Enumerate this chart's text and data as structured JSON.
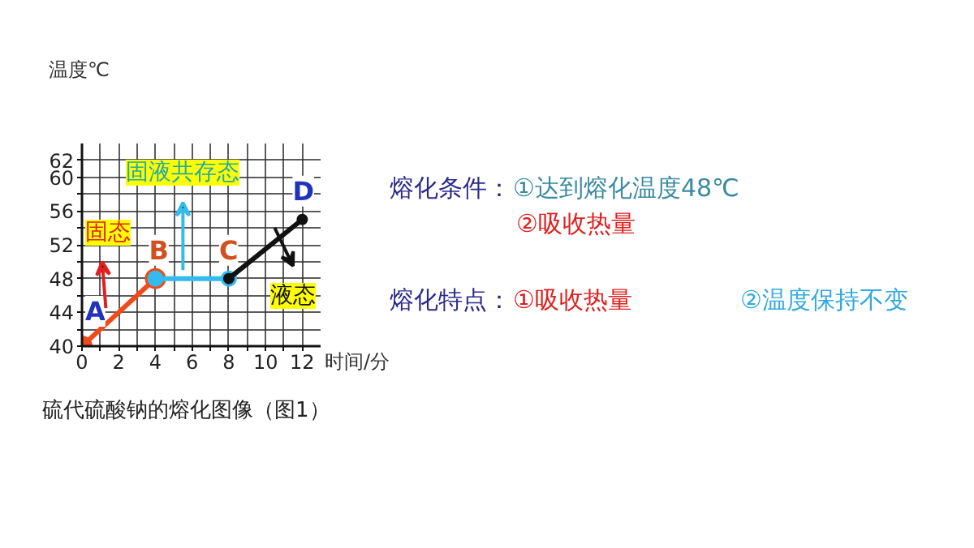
{
  "chart_data": {
    "type": "line",
    "xlabel": "时间/分",
    "ylabel": "温度℃",
    "series": [
      {
        "color": "#f04a1a",
        "x": [
          0,
          4
        ],
        "values": [
          40,
          48
        ]
      },
      {
        "color": "#33bbee",
        "x": [
          4,
          8
        ],
        "values": [
          48,
          48
        ]
      },
      {
        "color": "#111111",
        "x": [
          8,
          12
        ],
        "values": [
          48,
          55
        ]
      }
    ],
    "marker": "circle",
    "line_style": "solid",
    "grid": true,
    "xlim": [
      0,
      13
    ],
    "ylim": [
      40,
      64
    ],
    "xticks": [
      0,
      {
        "value": 1,
        "label": null
      },
      2,
      {
        "value": 3,
        "label": null
      },
      4,
      {
        "value": 5,
        "label": null
      },
      6,
      {
        "value": 7,
        "label": null
      },
      8,
      {
        "value": 9,
        "label": null
      },
      10,
      {
        "value": 11,
        "label": null
      },
      12
    ],
    "yticks": [
      40,
      {
        "value": 42,
        "label": null
      },
      44,
      {
        "value": 46,
        "label": null
      },
      48,
      {
        "value": 50,
        "label": null
      },
      52,
      {
        "value": 54,
        "label": null
      },
      56,
      {
        "value": 58,
        "label": null
      },
      60,
      62
    ],
    "annotations": [
      {
        "text": "A",
        "x": 0,
        "y": 40
      },
      {
        "text": "B",
        "x": 4,
        "y": 48
      },
      {
        "text": "C",
        "x": 8,
        "y": 48
      },
      {
        "text": "D",
        "x": 12,
        "y": 55
      },
      "固态",
      "固液共存态",
      "液态",
      "熔化条件：",
      "①达到熔化温度48℃",
      "②吸收热量",
      "熔化特点：",
      "①吸收热量",
      "②温度保持不变",
      "硫代硫酸钠的熔化图像（图1）"
    ]
  }
}
